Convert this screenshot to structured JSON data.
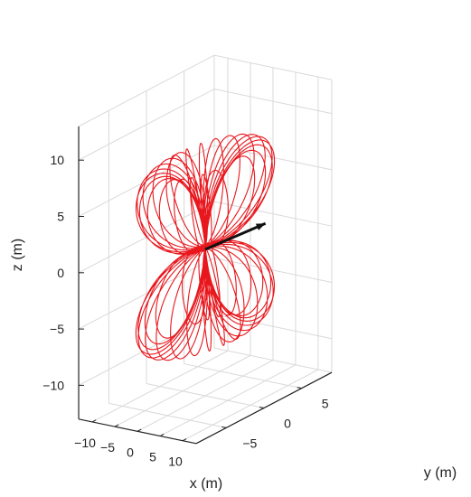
{
  "chart_data": {
    "type": "line3d",
    "title": "",
    "xlabel": "x (m)",
    "ylabel": "y (m)",
    "zlabel": "z (m)",
    "xlim": [
      -13,
      13
    ],
    "ylim": [
      -9,
      9
    ],
    "zlim": [
      -13,
      13
    ],
    "xticks": [
      -10,
      -5,
      0,
      5,
      10
    ],
    "yticks": [
      -5,
      0,
      5
    ],
    "zticks": [
      -10,
      -5,
      0,
      5,
      10
    ],
    "xtick_labels": [
      "−10",
      "−5",
      "0",
      "5",
      "10"
    ],
    "ytick_labels": [
      "−5",
      "0",
      "5"
    ],
    "ztick_labels": [
      "−10",
      "−5",
      "0",
      "5",
      "10"
    ],
    "grid": true,
    "colors": {
      "trajectory": "#e8171d",
      "arrow": "#111111",
      "grid": "#d9d9d9",
      "axis": "#222222"
    },
    "series": [
      {
        "style": "curve",
        "description_points_xyz": [
          [
            0,
            0,
            0
          ],
          [
            8,
            0,
            8
          ],
          [
            0,
            0,
            10
          ],
          [
            -8,
            0,
            8
          ],
          [
            0,
            0,
            0
          ],
          [
            8,
            0,
            -8
          ],
          [
            0,
            0,
            -10
          ],
          [
            -8,
            0,
            -8
          ]
        ],
        "loop_count": 12,
        "precession_deg": 180
      },
      {
        "style": "arrow",
        "from": [
          0,
          0,
          0
        ],
        "to": [
          0,
          8,
          -0.5
        ]
      }
    ]
  }
}
